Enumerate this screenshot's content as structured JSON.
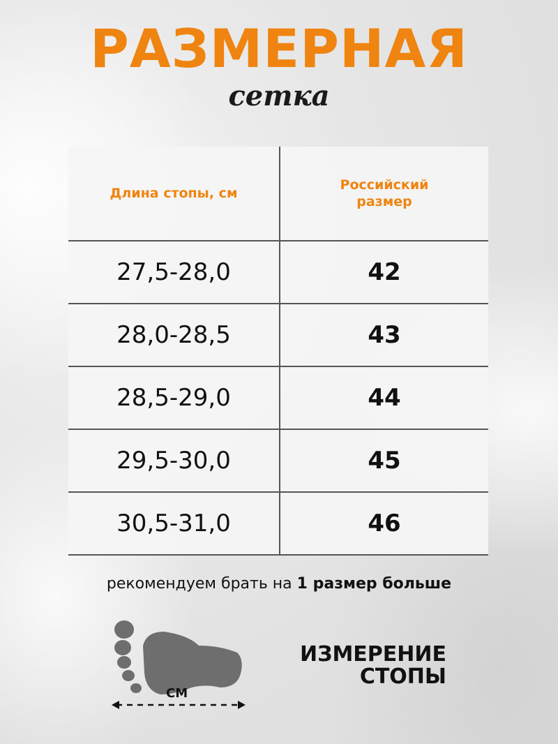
{
  "title": "РАЗМЕРНАЯ",
  "subtitle": "сетка",
  "table": {
    "headers": [
      "Длина стопы, см",
      "Российский размер"
    ],
    "rows": [
      [
        "27,5-28,0",
        "42"
      ],
      [
        "28,0-28,5",
        "43"
      ],
      [
        "28,5-29,0",
        "44"
      ],
      [
        "29,5-30,0",
        "45"
      ],
      [
        "30,5-31,0",
        "46"
      ]
    ]
  },
  "recommendation": {
    "prefix": "рекомендуем брать на ",
    "bold": "1 размер больше"
  },
  "measure": {
    "line1": "ИЗМЕРЕНИЕ",
    "line2": "СТОПЫ",
    "unit": "СМ",
    "icon": "foot-measure-icon"
  },
  "colors": {
    "accent": "#ef8410",
    "text": "#111111",
    "foot": "#6e6e6e"
  }
}
